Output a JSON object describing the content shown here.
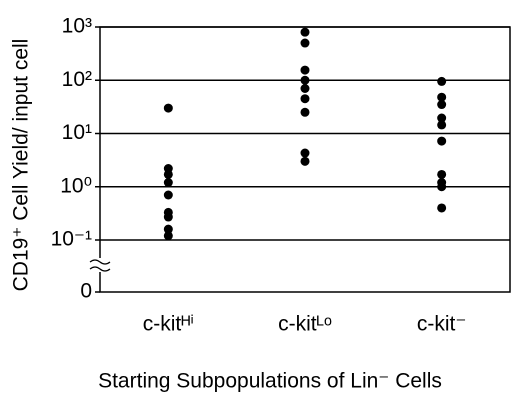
{
  "chart_data": {
    "type": "dot",
    "y_label": "CD19⁺ Cell Yield/ input cell",
    "x_label": "Starting Subpopulations of Lin⁻ Cells",
    "categories": [
      "c-kitᴴⁱ",
      "c-kitᴸᵒ",
      "c-kit⁻"
    ],
    "values": [
      [
        30,
        2.2,
        1.7,
        1.2,
        0.7,
        0.33,
        0.27,
        0.16,
        0.12
      ],
      [
        800,
        500,
        155,
        100,
        70,
        45,
        25,
        4.3,
        3.0
      ],
      [
        95,
        48,
        35,
        19.5,
        14.5,
        7.2,
        1.7,
        1.2,
        1.0,
        0.4
      ]
    ],
    "color": "#000000",
    "log_scale": true,
    "grid": true,
    "ylim": [
      0.1,
      1000
    ],
    "yticks": [
      {
        "value": 1000,
        "label": "10³"
      },
      {
        "value": 100,
        "label": "10²"
      },
      {
        "value": 10,
        "label": "10¹"
      },
      {
        "value": 1,
        "label": "10⁰"
      },
      {
        "value": 0.1,
        "label": "10⁻¹"
      },
      0
    ]
  }
}
